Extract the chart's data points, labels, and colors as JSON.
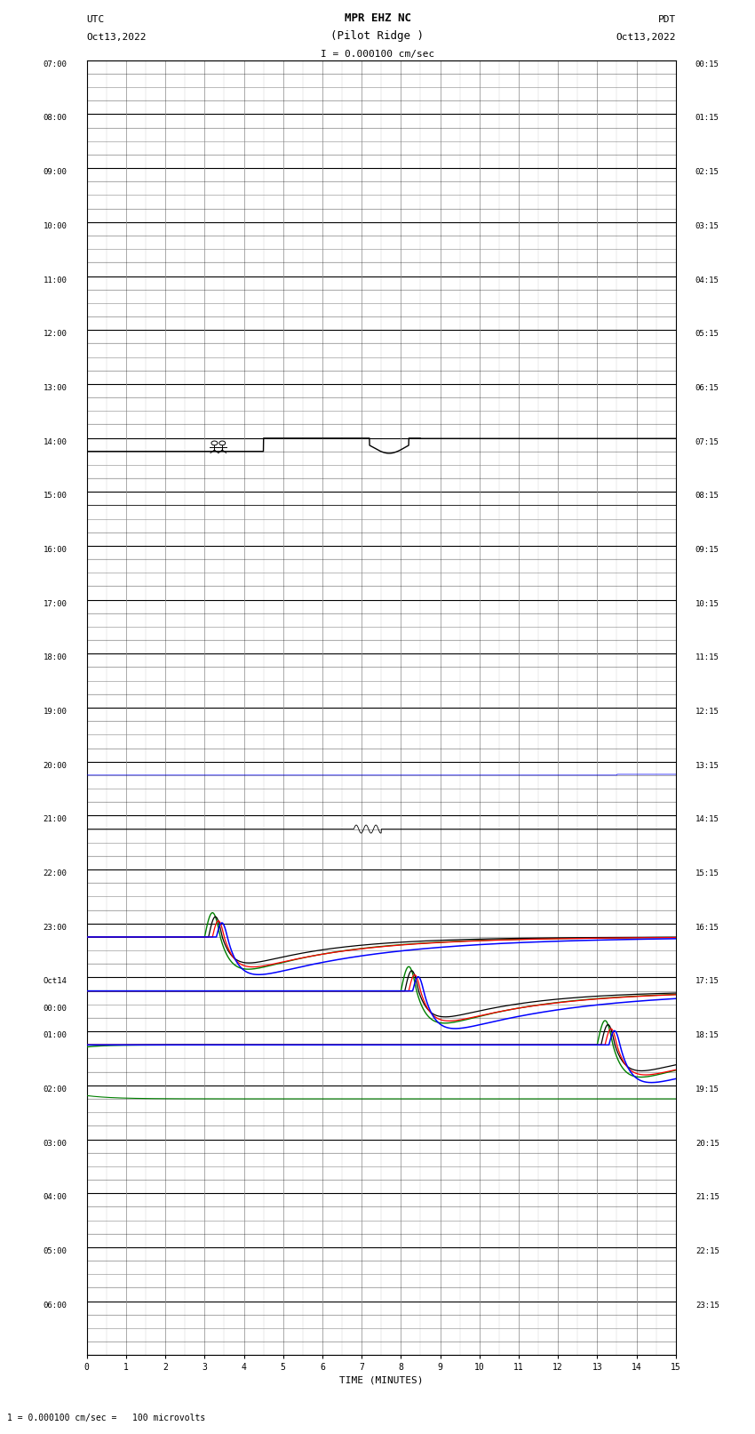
{
  "title_line1": "MPR EHZ NC",
  "title_line2": "(Pilot Ridge )",
  "title_scale": "I = 0.000100 cm/sec",
  "left_label_top": "UTC",
  "left_label_date": "Oct13,2022",
  "right_label_top": "PDT",
  "right_label_date": "Oct13,2022",
  "bottom_label": "TIME (MINUTES)",
  "bottom_note": "1 = 0.000100 cm/sec =   100 microvolts",
  "utc_labels": [
    "07:00",
    "08:00",
    "09:00",
    "10:00",
    "11:00",
    "12:00",
    "13:00",
    "14:00",
    "15:00",
    "16:00",
    "17:00",
    "18:00",
    "19:00",
    "20:00",
    "21:00",
    "22:00",
    "23:00",
    "Oct14\n00:00",
    "01:00",
    "02:00",
    "03:00",
    "04:00",
    "05:00",
    "06:00"
  ],
  "pdt_labels": [
    "00:15",
    "01:15",
    "02:15",
    "03:15",
    "04:15",
    "05:15",
    "06:15",
    "07:15",
    "08:15",
    "09:15",
    "10:15",
    "11:15",
    "12:15",
    "13:15",
    "14:15",
    "15:15",
    "16:15",
    "17:15",
    "18:15",
    "19:15",
    "20:15",
    "21:15",
    "22:15",
    "23:15"
  ],
  "n_rows": 24,
  "subrows": 2,
  "x_min": 0,
  "x_max": 15,
  "x_ticks": [
    0,
    1,
    2,
    3,
    4,
    5,
    6,
    7,
    8,
    9,
    10,
    11,
    12,
    13,
    14,
    15
  ],
  "background_color": "#ffffff",
  "grid_color": "#888888",
  "fig_width": 8.5,
  "fig_height": 16.13
}
